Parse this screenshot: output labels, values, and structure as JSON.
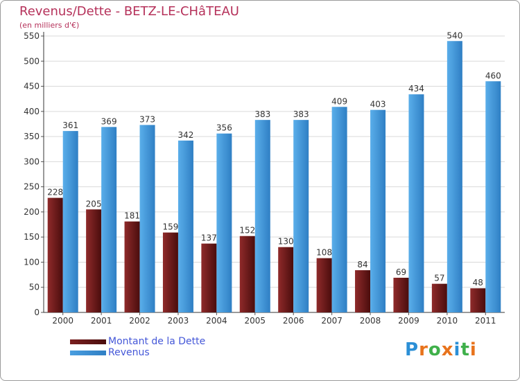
{
  "header": {
    "title": "Revenus/Dette - BETZ-LE-CHâTEAU",
    "subtitle": "(en milliers d'€)"
  },
  "legend": {
    "items": [
      {
        "label": "Montant de la Dette",
        "color": "#7a1f1f"
      },
      {
        "label": "Revenus",
        "color": "#4a9ee0"
      }
    ]
  },
  "logo": {
    "text": "Proxiti",
    "letters": [
      {
        "ch": "P",
        "color": "#2b8fd6"
      },
      {
        "ch": "r",
        "color": "#e8731c"
      },
      {
        "ch": "o",
        "color": "#3fb04a"
      },
      {
        "ch": "x",
        "color": "#e8731c"
      },
      {
        "ch": "i",
        "color": "#2b8fd6"
      },
      {
        "ch": "t",
        "color": "#3fb04a"
      },
      {
        "ch": "i",
        "color": "#e8731c"
      }
    ]
  },
  "chart_data": {
    "type": "bar",
    "title": "Revenus/Dette - BETZ-LE-CHâTEAU",
    "subtitle": "(en milliers d'€)",
    "xlabel": "",
    "ylabel": "",
    "categories": [
      "2000",
      "2001",
      "2002",
      "2003",
      "2004",
      "2005",
      "2006",
      "2007",
      "2008",
      "2009",
      "2010",
      "2011"
    ],
    "series": [
      {
        "name": "Montant de la Dette",
        "color": "#7a1f1f",
        "values": [
          228,
          205,
          181,
          159,
          137,
          152,
          130,
          108,
          84,
          69,
          57,
          48
        ]
      },
      {
        "name": "Revenus",
        "color": "#4a9ee0",
        "values": [
          361,
          369,
          373,
          342,
          356,
          383,
          383,
          409,
          403,
          434,
          540,
          460
        ]
      }
    ],
    "ylim": [
      0,
      550
    ],
    "yticks": [
      0,
      50,
      100,
      150,
      200,
      250,
      300,
      350,
      400,
      450,
      500,
      550
    ],
    "grid": true,
    "legend": "bottom-left"
  }
}
